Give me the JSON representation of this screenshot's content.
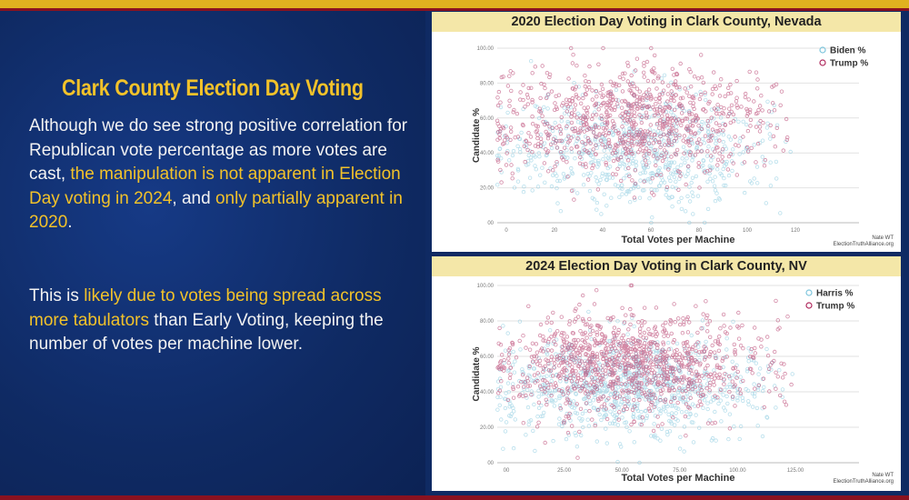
{
  "slide": {
    "title": "Clark County Election Day Voting",
    "paragraph1": {
      "normal1": "Although we do see strong positive correlation for Republican vote percentage as more votes are cast, ",
      "highlight1": "the manipulation is not apparent in Election Day voting in 2024",
      "normal2": ", and ",
      "highlight2": "only partially apparent in 2020",
      "normal3": "."
    },
    "paragraph2": {
      "normal1": "This is ",
      "highlight1": "likely due to votes being spread across more tabulators",
      "normal2": " than Early Voting, keeping the number of votes per machine lower."
    }
  },
  "colors": {
    "harris": "#7fc6dd",
    "trump": "#b02a5e",
    "accent": "#f2c22a",
    "background": "#0f2a63"
  },
  "chart_data": [
    {
      "type": "scatter",
      "title": "2020 Election Day Voting in Clark County, Nevada",
      "xlabel": "Total Votes per Machine",
      "ylabel": "Candidate %",
      "xlim": [
        0,
        130
      ],
      "ylim": [
        0,
        100
      ],
      "x_ticks": [
        "0",
        "20",
        "40",
        "60",
        "80",
        "100",
        "120"
      ],
      "y_ticks": [
        "100.00",
        "80.00",
        "60.00",
        "40.00",
        "20.00",
        "00"
      ],
      "legend": [
        "Biden %",
        "Trump %"
      ],
      "legend_position": "top-right",
      "credit_lines": [
        "Nate WT",
        "ElectionTruthAlliance.org"
      ],
      "series": [
        {
          "name": "Biden %",
          "center_x": 60,
          "center_y": 40,
          "spread_x": 28,
          "spread_y": 16,
          "count": 700
        },
        {
          "name": "Trump %",
          "center_x": 60,
          "center_y": 58,
          "spread_x": 28,
          "spread_y": 16,
          "count": 900
        }
      ]
    },
    {
      "type": "scatter",
      "title": "2024 Election Day Voting in Clark County, NV",
      "xlabel": "Total Votes per Machine",
      "ylabel": "Candidate %",
      "xlim": [
        0,
        140
      ],
      "ylim": [
        0,
        100
      ],
      "x_ticks": [
        "00",
        "25.00",
        "50.00",
        "75.00",
        "100.00",
        "125.00"
      ],
      "y_ticks": [
        "100.00",
        "80.00",
        "60.00",
        "40.00",
        "20.00",
        "00"
      ],
      "legend": [
        "Harris %",
        "Trump %"
      ],
      "legend_position": "top-right",
      "credit_lines": [
        "Nate WT",
        "ElectionTruthAlliance.org"
      ],
      "series": [
        {
          "name": "Harris %",
          "center_x": 60,
          "center_y": 42,
          "spread_x": 30,
          "spread_y": 14,
          "count": 900
        },
        {
          "name": "Trump %",
          "center_x": 60,
          "center_y": 56,
          "spread_x": 30,
          "spread_y": 14,
          "count": 1100
        }
      ]
    }
  ]
}
